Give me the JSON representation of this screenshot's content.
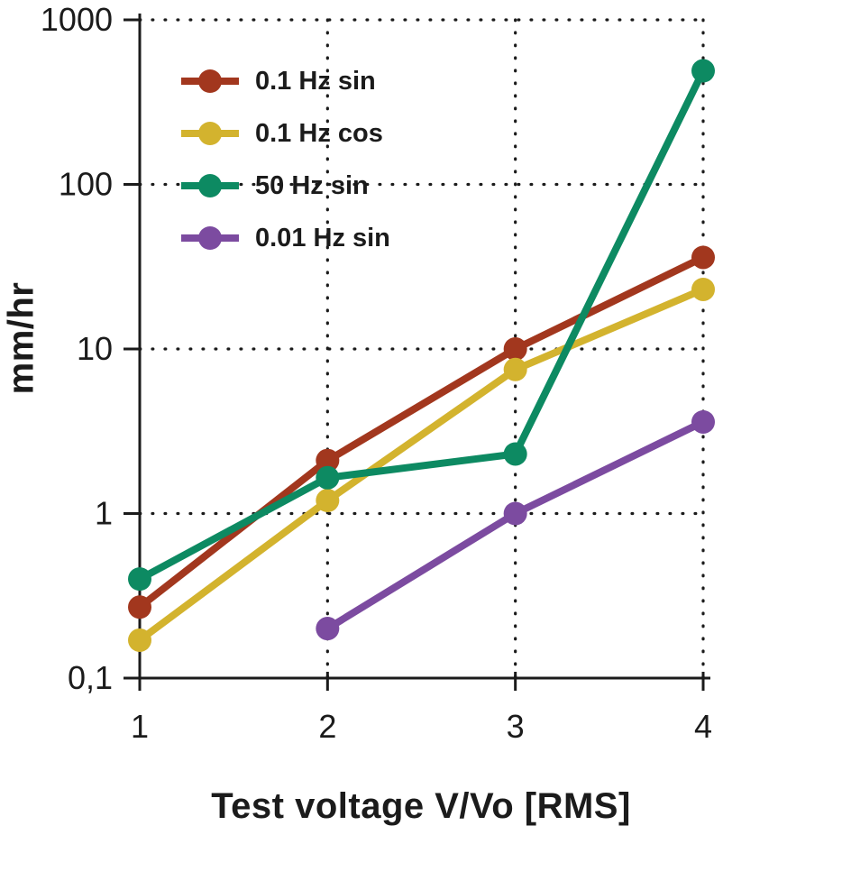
{
  "chart_data": {
    "type": "line",
    "title": "",
    "xlabel": "Test voltage V/Vo [RMS]",
    "ylabel": "mm/hr",
    "x_scale": "linear",
    "y_scale": "log",
    "xlim": [
      1,
      4
    ],
    "ylim": [
      0.1,
      1000
    ],
    "x_ticks": {
      "values": [
        1,
        2,
        3,
        4
      ],
      "labels": [
        "1",
        "2",
        "3",
        "4"
      ]
    },
    "y_ticks": {
      "values": [
        1000,
        100,
        10,
        1,
        0.1
      ],
      "labels": [
        "1000",
        "100",
        "10",
        "1",
        "0,1"
      ]
    },
    "grid": "dotted",
    "legend_position": "top-left-inside",
    "axis_color": "#1b1b1b",
    "series": [
      {
        "name": "0.1 Hz sin",
        "color": "#a2371e",
        "x": [
          1,
          2,
          3,
          4
        ],
        "y": [
          0.27,
          2.1,
          10,
          36
        ]
      },
      {
        "name": "0.1 Hz cos",
        "color": "#d3b32e",
        "x": [
          1,
          2,
          3,
          4
        ],
        "y": [
          0.17,
          1.2,
          7.5,
          23
        ]
      },
      {
        "name": "50 Hz sin",
        "color": "#0d8a62",
        "x": [
          1,
          2,
          3,
          4
        ],
        "y": [
          0.4,
          1.65,
          2.3,
          490
        ]
      },
      {
        "name": "0.01 Hz sin",
        "color": "#7c4ba0",
        "x": [
          2,
          3,
          4
        ],
        "y": [
          0.2,
          1.0,
          3.6
        ]
      }
    ]
  }
}
